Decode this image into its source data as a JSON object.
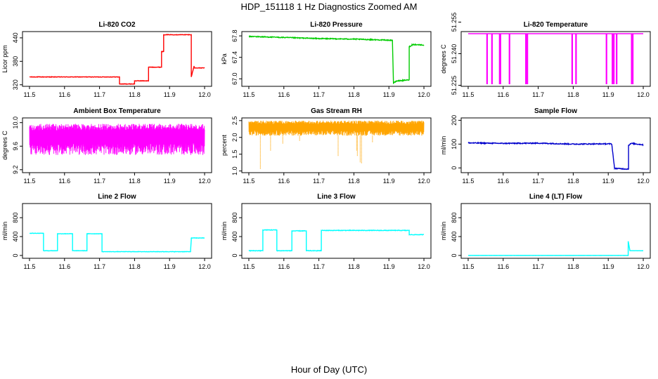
{
  "figure": {
    "title": "HDP_151118  1 Hz Diagnostics Zoomed AM",
    "xlabel": "Hour of Day (UTC)"
  },
  "chart_data": [
    {
      "type": "line",
      "title": "Li-820 CO2",
      "ylabel": "Licor ppm",
      "color": "#ff0000",
      "xlim": [
        11.48,
        12.02
      ],
      "ylim": [
        316,
        456
      ],
      "xticks": [
        "11.5",
        "11.6",
        "11.7",
        "11.8",
        "11.9",
        "12.0"
      ],
      "yticks": [
        "320",
        "380",
        "440"
      ],
      "series": [
        {
          "name": "CO2",
          "noise": 0.6,
          "x": [
            11.5,
            11.757,
            11.757,
            11.8,
            11.8,
            11.83,
            11.83,
            11.84,
            11.84,
            11.877,
            11.877,
            11.883,
            11.883,
            11.962,
            11.962,
            11.97,
            11.97,
            12.0
          ],
          "y": [
            340,
            340,
            322,
            322,
            330,
            330,
            330,
            330,
            365,
            365,
            405,
            405,
            448,
            448,
            340,
            368,
            363,
            363
          ]
        }
      ]
    },
    {
      "type": "line",
      "title": "Li-820 Pressure",
      "ylabel": "kPa",
      "color": "#00cc00",
      "xlim": [
        11.48,
        12.02
      ],
      "ylim": [
        66.86,
        67.88
      ],
      "xticks": [
        "11.5",
        "11.6",
        "11.7",
        "11.8",
        "11.9",
        "12.0"
      ],
      "yticks": [
        "67.0",
        "67.4",
        "67.8"
      ],
      "series": [
        {
          "name": "Pressure",
          "noise": 0.008,
          "x": [
            11.5,
            11.6,
            11.7,
            11.8,
            11.9,
            11.91,
            11.913,
            11.922,
            11.958,
            11.958,
            11.966,
            11.966,
            12.0
          ],
          "y": [
            67.79,
            67.77,
            67.75,
            67.74,
            67.72,
            67.72,
            66.92,
            66.96,
            66.98,
            67.6,
            67.62,
            67.64,
            67.63
          ]
        }
      ]
    },
    {
      "type": "line",
      "title": "Li-820 Temperature",
      "ylabel": "degrees C",
      "color": "#ff00ff",
      "xlim": [
        11.48,
        12.02
      ],
      "ylim": [
        51.2245,
        51.2505
      ],
      "xticks": [
        "11.5",
        "11.6",
        "11.7",
        "11.8",
        "11.9",
        "12.0"
      ],
      "yticks": [
        "51.225",
        "51.240",
        "51.255"
      ],
      "series": [
        {
          "name": "Temperature",
          "noise": 0,
          "x": [
            11.5,
            12.0
          ],
          "y": [
            51.2495,
            51.2495
          ]
        }
      ],
      "dips": [
        11.554,
        11.568,
        11.59,
        11.592,
        11.618,
        11.665,
        11.669,
        11.797,
        11.808,
        11.895,
        11.912,
        11.916,
        11.924,
        11.967,
        11.97
      ],
      "dip_to": 51.2255
    },
    {
      "type": "line",
      "title": "Ambient Box Temperature",
      "ylabel": "degrees C",
      "color": "#ff00ff",
      "xlim": [
        11.48,
        12.02
      ],
      "ylim": [
        9.15,
        10.08
      ],
      "xticks": [
        "11.5",
        "11.6",
        "11.7",
        "11.8",
        "11.9",
        "12.0"
      ],
      "yticks": [
        "9.2",
        "9.6",
        "10.0"
      ],
      "series": [
        {
          "name": "Ambient",
          "noise": 0.12,
          "x": [
            11.5,
            12.0
          ],
          "y": [
            9.75,
            9.78
          ]
        }
      ],
      "band": [
        9.45,
        9.98
      ]
    },
    {
      "type": "line",
      "title": "Gas Stream RH",
      "ylabel": "percent",
      "color": "#ffa500",
      "xlim": [
        11.48,
        12.02
      ],
      "ylim": [
        0.95,
        2.58
      ],
      "xticks": [
        "11.5",
        "11.6",
        "11.7",
        "11.8",
        "11.9",
        "12.0"
      ],
      "yticks": [
        "1.0",
        "1.5",
        "2.0",
        "2.5"
      ],
      "series": [
        {
          "name": "RH",
          "noise": 0.1,
          "x": [
            11.5,
            12.0
          ],
          "y": [
            2.3,
            2.3
          ]
        }
      ],
      "band": [
        2.05,
        2.5
      ],
      "spikes": [
        [
          11.533,
          1.05
        ],
        [
          11.562,
          1.6
        ],
        [
          11.597,
          1.8
        ],
        [
          11.645,
          1.9
        ],
        [
          11.755,
          1.45
        ],
        [
          11.808,
          1.6
        ],
        [
          11.81,
          1.45
        ],
        [
          11.818,
          1.25
        ],
        [
          11.822,
          1.22
        ],
        [
          11.853,
          1.85
        ]
      ]
    },
    {
      "type": "line",
      "title": "Sample Flow",
      "ylabel": "ml/min",
      "color": "#0000cc",
      "xlim": [
        11.48,
        12.02
      ],
      "ylim": [
        -20,
        210
      ],
      "xticks": [
        "11.5",
        "11.6",
        "11.7",
        "11.8",
        "11.9",
        "12.0"
      ],
      "yticks": [
        "0",
        "100",
        "200"
      ],
      "series": [
        {
          "name": "Sample",
          "noise": 2,
          "x": [
            11.5,
            11.6,
            11.7,
            11.8,
            11.9,
            11.91,
            11.918,
            11.958,
            11.958,
            11.966,
            12.0
          ],
          "y": [
            105,
            103,
            104,
            100,
            101,
            101,
            -2,
            -5,
            95,
            103,
            97
          ]
        }
      ]
    },
    {
      "type": "line",
      "title": "Line 2 Flow",
      "ylabel": "ml/min",
      "color": "#00ffff",
      "xlim": [
        11.48,
        12.02
      ],
      "ylim": [
        -60,
        1100
      ],
      "xticks": [
        "11.5",
        "11.6",
        "11.7",
        "11.8",
        "11.9",
        "12.0"
      ],
      "yticks": [
        "0",
        "400",
        "800"
      ],
      "series": [
        {
          "name": "Line 2",
          "noise": 4,
          "x": [
            11.5,
            11.54,
            11.54,
            11.58,
            11.58,
            11.623,
            11.623,
            11.664,
            11.664,
            11.707,
            11.707,
            11.96,
            11.96,
            11.962,
            11.962,
            12.0
          ],
          "y": [
            470,
            470,
            100,
            100,
            460,
            460,
            100,
            100,
            460,
            460,
            80,
            80,
            110,
            330,
            370,
            370
          ]
        }
      ]
    },
    {
      "type": "line",
      "title": "Line 3 Flow",
      "ylabel": "ml/min",
      "color": "#00ffff",
      "xlim": [
        11.48,
        12.02
      ],
      "ylim": [
        -60,
        1100
      ],
      "xticks": [
        "11.5",
        "11.6",
        "11.7",
        "11.8",
        "11.9",
        "12.0"
      ],
      "yticks": [
        "0",
        "400",
        "800"
      ],
      "series": [
        {
          "name": "Line 3",
          "noise": 6,
          "x": [
            11.5,
            11.54,
            11.54,
            11.58,
            11.58,
            11.623,
            11.623,
            11.664,
            11.664,
            11.707,
            11.707,
            11.958,
            11.958,
            12.0
          ],
          "y": [
            100,
            100,
            540,
            540,
            100,
            100,
            520,
            520,
            100,
            100,
            530,
            530,
            440,
            440
          ]
        }
      ]
    },
    {
      "type": "line",
      "title": "Line 4 (LT) Flow",
      "ylabel": "ml/min",
      "color": "#00ffff",
      "xlim": [
        11.48,
        12.02
      ],
      "ylim": [
        -60,
        1100
      ],
      "xticks": [
        "11.5",
        "11.6",
        "11.7",
        "11.8",
        "11.9",
        "12.0"
      ],
      "yticks": [
        "0",
        "400",
        "800"
      ],
      "series": [
        {
          "name": "Line 4",
          "noise": 1,
          "x": [
            11.5,
            11.957,
            11.957,
            11.962,
            11.962,
            12.0
          ],
          "y": [
            0,
            0,
            300,
            100,
            100,
            100
          ]
        }
      ]
    }
  ]
}
